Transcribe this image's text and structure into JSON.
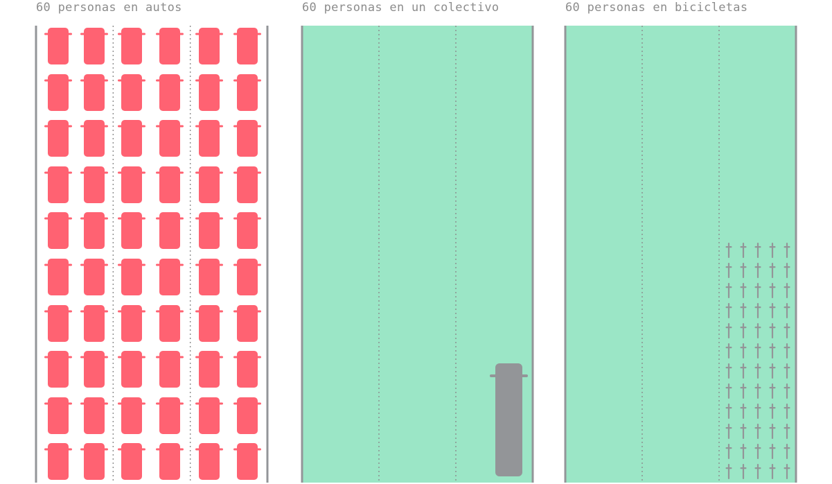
{
  "panels": [
    {
      "title": "60 personas en autos",
      "mode": "car",
      "vehicle_count": 60,
      "grid": {
        "columns": 6,
        "rows": 10
      },
      "lanes": 3,
      "road_color": "#ffffff"
    },
    {
      "title": "60 personas en un colectivo",
      "mode": "bus",
      "vehicle_count": 1,
      "lanes": 3,
      "road_color": "#9be6c6"
    },
    {
      "title": "60 personas en bicicletas",
      "mode": "bicycle",
      "vehicle_count": 60,
      "grid": {
        "columns": 5,
        "rows": 12
      },
      "lanes": 3,
      "road_color": "#9be6c6"
    }
  ],
  "colors": {
    "car": "#ff6272",
    "bus": "#939598",
    "bicycle": "#939598",
    "road_edge": "#939598",
    "lane_divider": "#8c8c8c",
    "freed_space": "#9be6c6",
    "title_text": "#8c8c8c"
  }
}
